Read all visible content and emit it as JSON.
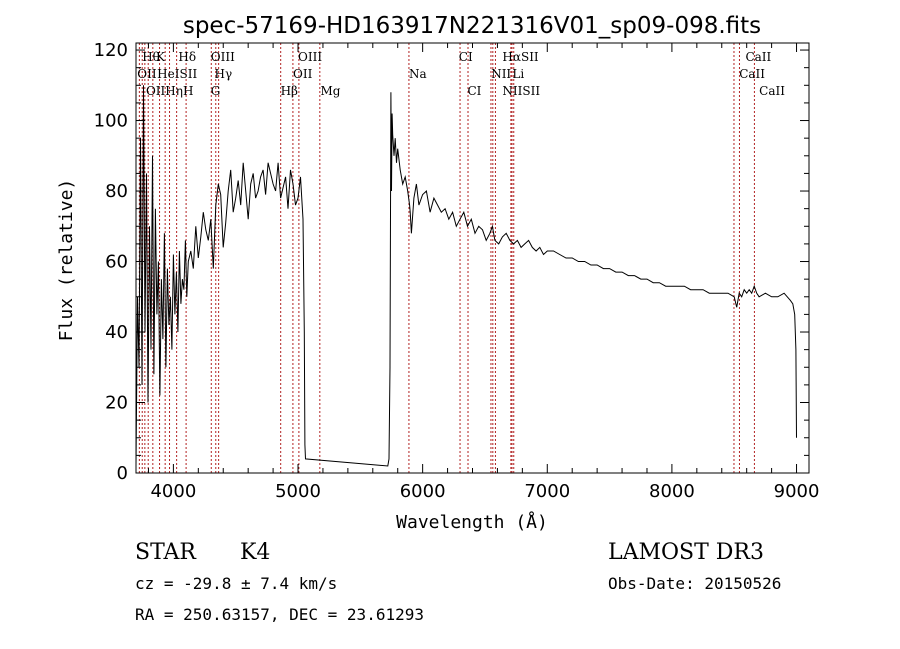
{
  "chart_data": {
    "type": "line",
    "title": "spec-57169-HD163917N221316V01_sp09-098.fits",
    "xlabel": "Wavelength (Å)",
    "ylabel": "Flux (relative)",
    "xlim": [
      3700,
      9100
    ],
    "ylim": [
      0,
      122
    ],
    "xticks": [
      4000,
      5000,
      6000,
      7000,
      8000,
      9000
    ],
    "yticks": [
      0,
      20,
      40,
      60,
      80,
      100,
      120
    ],
    "series": [
      {
        "name": "spectrum",
        "x": [
          3700,
          3712,
          3724,
          3736,
          3748,
          3760,
          3772,
          3784,
          3796,
          3808,
          3820,
          3832,
          3844,
          3856,
          3868,
          3880,
          3892,
          3904,
          3916,
          3928,
          3940,
          3952,
          3964,
          3976,
          3988,
          4000,
          4012,
          4024,
          4036,
          4048,
          4060,
          4072,
          4084,
          4096,
          4108,
          4120,
          4140,
          4160,
          4180,
          4200,
          4220,
          4240,
          4260,
          4280,
          4300,
          4320,
          4340,
          4360,
          4380,
          4400,
          4420,
          4440,
          4460,
          4480,
          4500,
          4520,
          4540,
          4560,
          4580,
          4600,
          4620,
          4640,
          4660,
          4680,
          4700,
          4720,
          4740,
          4760,
          4780,
          4800,
          4820,
          4840,
          4860,
          4880,
          4900,
          4920,
          4940,
          4960,
          4980,
          5000,
          5020,
          5040,
          5050,
          5055,
          5060,
          5720,
          5730,
          5738,
          5745,
          5750,
          5755,
          5760,
          5770,
          5780,
          5790,
          5800,
          5820,
          5840,
          5860,
          5880,
          5895,
          5900,
          5910,
          5930,
          5950,
          5970,
          6000,
          6030,
          6060,
          6090,
          6120,
          6150,
          6180,
          6210,
          6240,
          6270,
          6300,
          6330,
          6360,
          6390,
          6420,
          6450,
          6480,
          6510,
          6540,
          6560,
          6580,
          6610,
          6640,
          6670,
          6700,
          6730,
          6760,
          6790,
          6820,
          6850,
          6880,
          6910,
          6940,
          6970,
          7000,
          7050,
          7100,
          7150,
          7200,
          7250,
          7300,
          7350,
          7400,
          7450,
          7500,
          7550,
          7600,
          7650,
          7700,
          7750,
          7800,
          7850,
          7900,
          7950,
          8000,
          8050,
          8100,
          8150,
          8200,
          8250,
          8300,
          8350,
          8400,
          8450,
          8500,
          8520,
          8540,
          8560,
          8580,
          8600,
          8620,
          8640,
          8660,
          8680,
          8700,
          8750,
          8800,
          8850,
          8900,
          8950,
          8970,
          8985,
          8995,
          9000
        ],
        "y": [
          2,
          50,
          30,
          95,
          25,
          110,
          40,
          85,
          20,
          70,
          35,
          90,
          28,
          75,
          45,
          60,
          22,
          55,
          38,
          68,
          30,
          58,
          42,
          50,
          35,
          62,
          45,
          57,
          40,
          63,
          48,
          55,
          52,
          66,
          50,
          60,
          63,
          58,
          70,
          61,
          67,
          74,
          69,
          66,
          72,
          58,
          76,
          82,
          79,
          64,
          71,
          80,
          86,
          74,
          78,
          83,
          76,
          88,
          80,
          72,
          82,
          85,
          78,
          80,
          84,
          86,
          79,
          88,
          85,
          82,
          80,
          88,
          78,
          81,
          84,
          75,
          86,
          82,
          76,
          78,
          84,
          72,
          40,
          8,
          4,
          2,
          4,
          30,
          108,
          80,
          102,
          96,
          90,
          95,
          88,
          92,
          86,
          82,
          84,
          80,
          76,
          74,
          68,
          78,
          82,
          76,
          79,
          80,
          74,
          78,
          76,
          74,
          75,
          72,
          74,
          70,
          72,
          74,
          70,
          72,
          68,
          70,
          69,
          66,
          68,
          70,
          66,
          65,
          67,
          68,
          66,
          65,
          66,
          64,
          65,
          66,
          64,
          63,
          64,
          62,
          63,
          63,
          62,
          61,
          61,
          60,
          60,
          59,
          59,
          58,
          58,
          57,
          57,
          56,
          56,
          55,
          55,
          54,
          54,
          53,
          53,
          53,
          53,
          52,
          52,
          52,
          51,
          51,
          51,
          51,
          50,
          47,
          51,
          50,
          52,
          51,
          52,
          51,
          53,
          51,
          50,
          51,
          50,
          50,
          51,
          49,
          48,
          45,
          35,
          10
        ]
      }
    ],
    "line_labels": [
      {
        "text": "Hθ",
        "wave": 3750,
        "row": 1
      },
      {
        "text": "K",
        "wave": 3860,
        "row": 1
      },
      {
        "text": "Hδ",
        "wave": 4040,
        "row": 1
      },
      {
        "text": "OIII",
        "wave": 4300,
        "row": 1
      },
      {
        "text": "OIII",
        "wave": 5000,
        "row": 1
      },
      {
        "text": "CI",
        "wave": 6290,
        "row": 1
      },
      {
        "text": "HαSII",
        "wave": 6640,
        "row": 1
      },
      {
        "text": "CaII",
        "wave": 8590,
        "row": 1
      },
      {
        "text": "OII",
        "wave": 3710,
        "row": 2
      },
      {
        "text": "HeISII",
        "wave": 3870,
        "row": 2
      },
      {
        "text": "Hγ",
        "wave": 4330,
        "row": 2
      },
      {
        "text": "OII",
        "wave": 4960,
        "row": 2
      },
      {
        "text": "Na",
        "wave": 5890,
        "row": 2
      },
      {
        "text": "NII",
        "wave": 6550,
        "row": 2
      },
      {
        "text": "Li",
        "wave": 6720,
        "row": 2
      },
      {
        "text": "CaII",
        "wave": 8540,
        "row": 2
      },
      {
        "text": "OIIHηH",
        "wave": 3780,
        "row": 3
      },
      {
        "text": "G",
        "wave": 4300,
        "row": 3
      },
      {
        "text": "Hβ",
        "wave": 4860,
        "row": 3
      },
      {
        "text": "Mg",
        "wave": 5180,
        "row": 3
      },
      {
        "text": "CI",
        "wave": 6360,
        "row": 3
      },
      {
        "text": "NIISII",
        "wave": 6640,
        "row": 3
      },
      {
        "text": "CaII",
        "wave": 8700,
        "row": 3
      }
    ],
    "marker_lines": [
      3727,
      3750,
      3771,
      3798,
      3835,
      3889,
      3934,
      3969,
      4026,
      4102,
      4304,
      4340,
      4363,
      4861,
      4959,
      5007,
      5175,
      5890,
      6300,
      6364,
      6548,
      6563,
      6584,
      6708,
      6717,
      6731,
      8498,
      8542,
      8662
    ],
    "marker_color": "#b22222"
  },
  "info": {
    "class": "STAR",
    "subclass": "K4",
    "survey": "LAMOST DR3",
    "cz": "cz = -29.8 ± 7.4 km/s",
    "obs_date": "Obs-Date: 20150526",
    "coords": "RA = 250.63157, DEC =  23.61293"
  }
}
